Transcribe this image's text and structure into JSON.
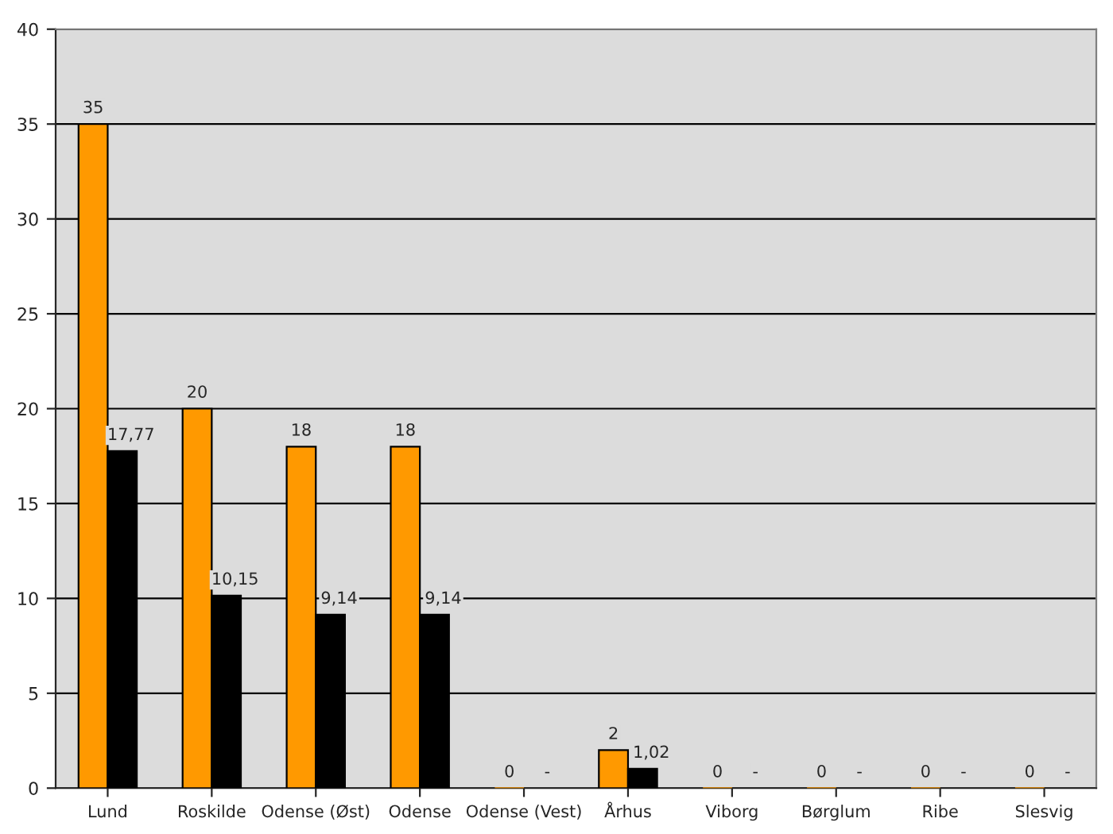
{
  "chart_data": {
    "type": "bar",
    "categories": [
      "Lund",
      "Roskilde",
      "Odense (Øst)",
      "Odense",
      "Odense (Vest)",
      "Århus",
      "Viborg",
      "Børglum",
      "Ribe",
      "Slesvig"
    ],
    "series": [
      {
        "color": "#ff9900",
        "values": [
          35,
          20,
          18,
          18,
          0,
          2,
          0,
          0,
          0,
          0
        ],
        "value_labels": [
          "35",
          "20",
          "18",
          "18",
          "0",
          "2",
          "0",
          "0",
          "0",
          "0"
        ]
      },
      {
        "color": "#000000",
        "values": [
          17.77,
          10.15,
          9.14,
          9.14,
          null,
          1.02,
          null,
          null,
          null,
          null
        ],
        "value_labels": [
          "17,77",
          "10,15",
          "9,14",
          "9,14",
          "-",
          "1,02",
          "-",
          "-",
          "-",
          "-"
        ]
      }
    ],
    "ylim": [
      0,
      40
    ],
    "yticks": [
      0,
      5,
      10,
      15,
      20,
      25,
      30,
      35,
      40
    ],
    "grid": "y",
    "legend": false
  }
}
